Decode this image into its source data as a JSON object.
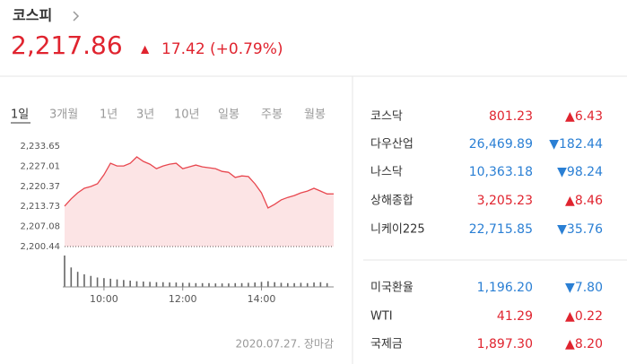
{
  "header": {
    "title": "코스피",
    "value": "2,217.86",
    "arrow": "▲",
    "change": "17.42",
    "percent": "(+0.79%)"
  },
  "tabs": [
    "1일",
    "3개월",
    "1년",
    "3년",
    "10년",
    "일봉",
    "주봉",
    "월봉"
  ],
  "chart_data": {
    "type": "line",
    "x": [
      "09:00",
      "09:10",
      "09:20",
      "09:30",
      "09:40",
      "09:50",
      "10:00",
      "10:10",
      "10:20",
      "10:30",
      "10:40",
      "10:50",
      "11:00",
      "11:10",
      "11:20",
      "11:30",
      "11:40",
      "11:50",
      "12:00",
      "12:10",
      "12:20",
      "12:30",
      "12:40",
      "12:50",
      "13:00",
      "13:10",
      "13:20",
      "13:30",
      "13:40",
      "13:50",
      "14:00",
      "14:10",
      "14:20",
      "14:30",
      "14:40",
      "14:50",
      "15:00",
      "15:10",
      "15:20",
      "15:30",
      "15:40"
    ],
    "series": [
      {
        "color": "#e8474f",
        "values": [
          2213.8,
          2216.2,
          2218.2,
          2219.7,
          2220.3,
          2221.2,
          2224.2,
          2228.0,
          2227.1,
          2227.1,
          2228.0,
          2230.1,
          2228.6,
          2227.7,
          2226.2,
          2227.1,
          2227.7,
          2228.0,
          2226.2,
          2226.8,
          2227.4,
          2226.8,
          2226.5,
          2226.2,
          2225.3,
          2225.0,
          2223.3,
          2223.8,
          2223.6,
          2221.2,
          2218.2,
          2213.2,
          2214.4,
          2215.9,
          2216.7,
          2217.3,
          2218.2,
          2218.8,
          2219.7,
          2218.8,
          2217.86
        ]
      }
    ],
    "volume": [
      100,
      62,
      48,
      40,
      35,
      30,
      28,
      26,
      24,
      22,
      20,
      18,
      17,
      16,
      15,
      15,
      14,
      14,
      13,
      13,
      12,
      12,
      12,
      11,
      11,
      11,
      12,
      12,
      13,
      14,
      16,
      18,
      15,
      13,
      12,
      12,
      13,
      12,
      14,
      15,
      12
    ],
    "ylim": [
      2200.44,
      2233.65
    ],
    "yticks": [
      {
        "value": 2200.44,
        "label": "2,200.44"
      },
      {
        "value": 2207.08,
        "label": "2,207.08"
      },
      {
        "value": 2213.73,
        "label": "2,213.73"
      },
      {
        "value": 2220.37,
        "label": "2,220.37"
      },
      {
        "value": 2227.01,
        "label": "2,227.01"
      },
      {
        "value": 2233.65,
        "label": "2,233.65"
      }
    ],
    "xlim": [
      "09:00",
      "15:50"
    ],
    "xticks": [
      "10:00",
      "12:00",
      "14:00"
    ]
  },
  "markets": [
    [
      {
        "name": "코스닥",
        "value": "801.23",
        "change": "▲6.43",
        "direction": "up"
      },
      {
        "name": "다우산업",
        "value": "26,469.89",
        "change": "▼182.44",
        "direction": "down"
      },
      {
        "name": "나스닥",
        "value": "10,363.18",
        "change": "▼98.24",
        "direction": "down"
      },
      {
        "name": "상해종합",
        "value": "3,205.23",
        "change": "▲8.46",
        "direction": "up"
      },
      {
        "name": "니케이225",
        "value": "22,715.85",
        "change": "▼35.76",
        "direction": "down"
      }
    ],
    [
      {
        "name": "미국환율",
        "value": "1,196.20",
        "change": "▼7.80",
        "direction": "down"
      },
      {
        "name": "WTI",
        "value": "41.29",
        "change": "▲0.22",
        "direction": "up"
      },
      {
        "name": "국제금",
        "value": "1,897.30",
        "change": "▲8.20",
        "direction": "up"
      }
    ]
  ],
  "footer": "2020.07.27. 장마감"
}
